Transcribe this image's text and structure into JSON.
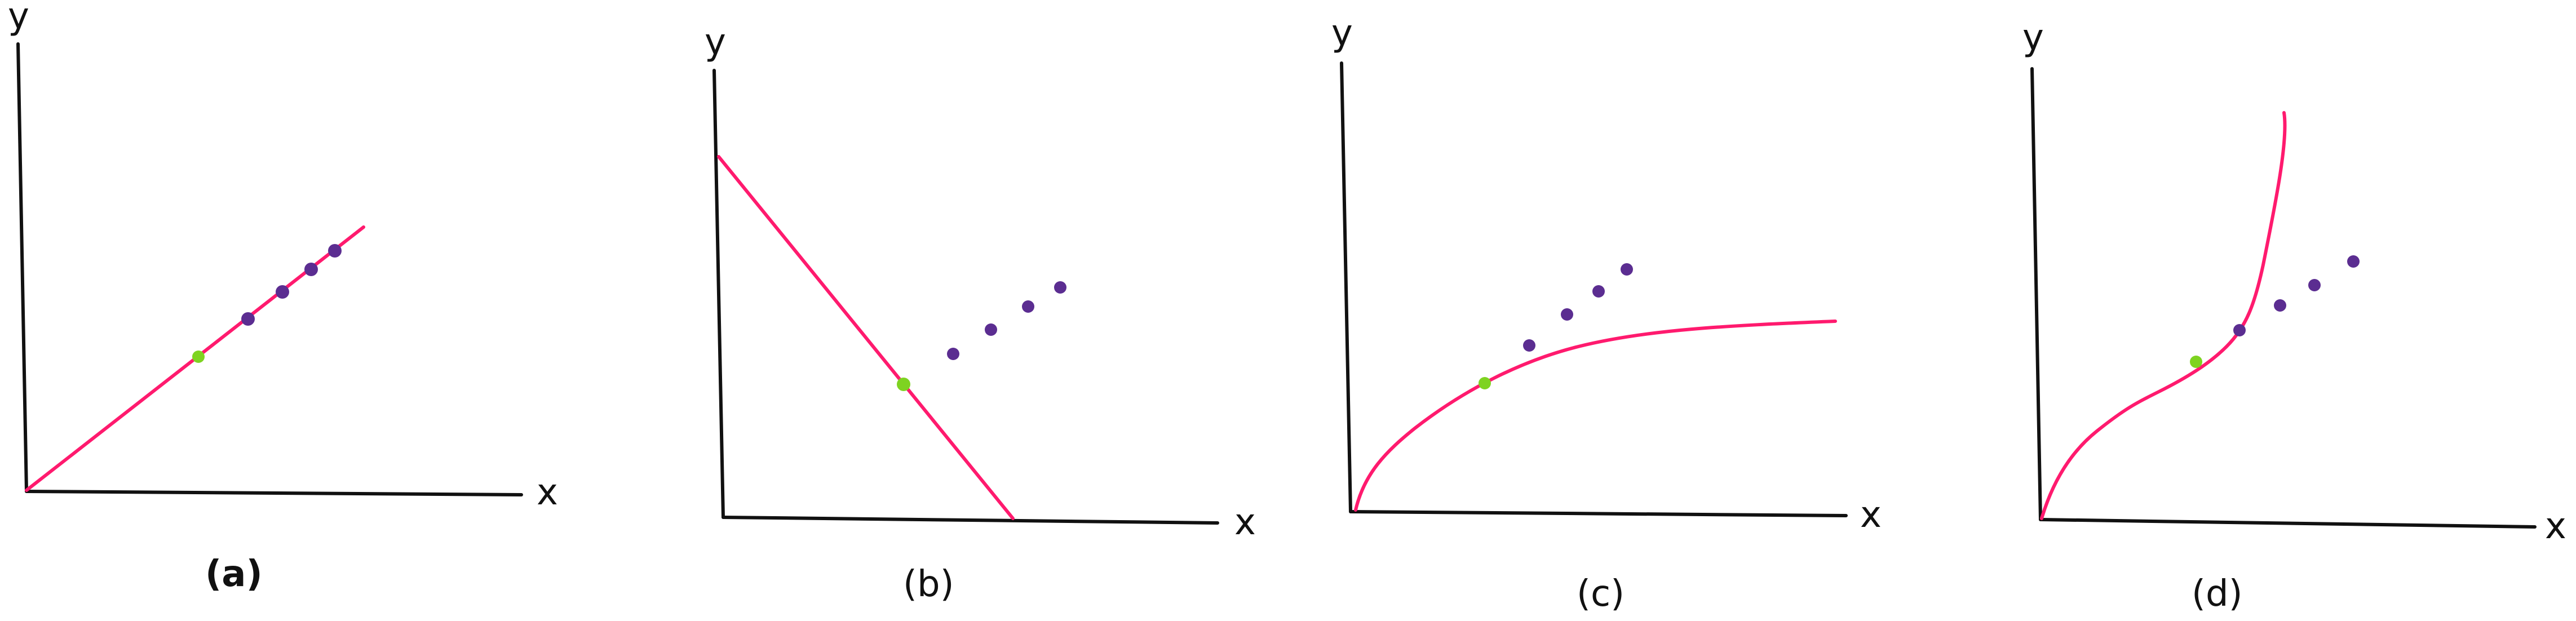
{
  "colors": {
    "axis": "#111111",
    "curve": "#ff1a6e",
    "highlight_point": "#7ed321",
    "data_points": "#5b2d91"
  },
  "panels": [
    {
      "caption": "(a)",
      "axis_x": "x",
      "axis_y": "y",
      "curve_shape": "straight line through origin",
      "highlight_on_curve": true,
      "dots_on_curve": true
    },
    {
      "caption": "(b)",
      "axis_x": "x",
      "axis_y": "y",
      "curve_shape": "decreasing straight line",
      "highlight_on_curve": true,
      "dots_on_curve": false
    },
    {
      "caption": "(c)",
      "axis_x": "x",
      "axis_y": "y",
      "curve_shape": "concave saturating curve",
      "highlight_on_curve": true,
      "dots_on_curve": false
    },
    {
      "caption": "(d)",
      "axis_x": "x",
      "axis_y": "y",
      "curve_shape": "S-shaped curve rising steeply",
      "highlight_on_curve": true,
      "dots_on_curve": "first dot on curve"
    }
  ]
}
